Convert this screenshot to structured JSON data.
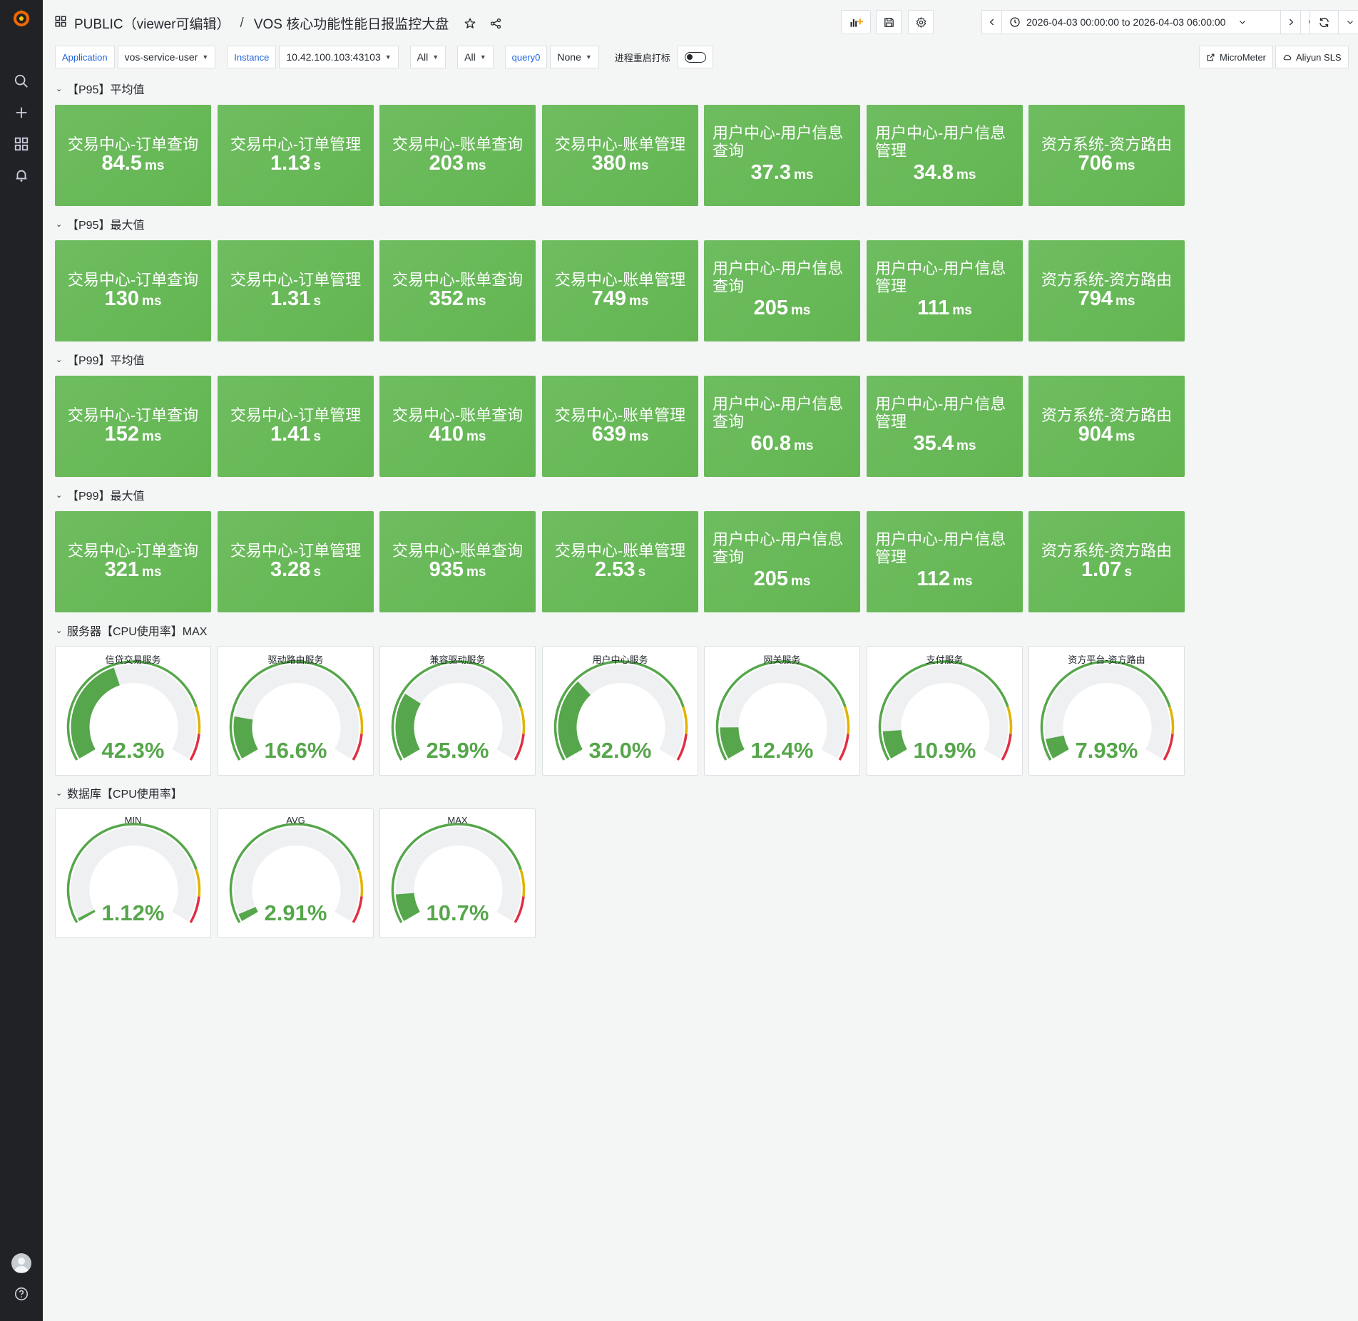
{
  "breadcrumb": {
    "folder": "PUBLIC（viewer可编辑）",
    "separator": "/",
    "dashboard": "VOS 核心功能性能日报监控大盘"
  },
  "timepicker": {
    "range": "2026-04-03 00:00:00 to 2026-04-03 06:00:00"
  },
  "variables": {
    "application_label": "Application",
    "application_value": "vos-service-user",
    "instance_label": "Instance",
    "instance_value": "10.42.100.103:43103",
    "all_1": "All",
    "all_2": "All",
    "query0_label": "query0",
    "query0_value": "None",
    "restart_label": "进程重启打标"
  },
  "links": {
    "micrometer": "MicroMeter",
    "aliyun": "Aliyun SLS"
  },
  "rows": {
    "p95_avg": "【P95】平均值",
    "p95_max": "【P95】最大值",
    "p99_avg": "【P99】平均值",
    "p99_max": "【P99】最大值",
    "cpu_server": "服务器【CPU使用率】MAX",
    "cpu_db": "数据库【CPU使用率】"
  },
  "stat_titles": [
    "交易中心-订单查询",
    "交易中心-订单管理",
    "交易中心-账单查询",
    "交易中心-账单管理",
    "用户中心-用户信息查询",
    "用户中心-用户信息管理",
    "资方系统-资方路由"
  ],
  "p95_avg": [
    {
      "value": "84.5",
      "unit": "ms"
    },
    {
      "value": "1.13",
      "unit": "s"
    },
    {
      "value": "203",
      "unit": "ms"
    },
    {
      "value": "380",
      "unit": "ms"
    },
    {
      "value": "37.3",
      "unit": "ms"
    },
    {
      "value": "34.8",
      "unit": "ms"
    },
    {
      "value": "706",
      "unit": "ms"
    }
  ],
  "p95_max": [
    {
      "value": "130",
      "unit": "ms"
    },
    {
      "value": "1.31",
      "unit": "s"
    },
    {
      "value": "352",
      "unit": "ms"
    },
    {
      "value": "749",
      "unit": "ms"
    },
    {
      "value": "205",
      "unit": "ms"
    },
    {
      "value": "111",
      "unit": "ms"
    },
    {
      "value": "794",
      "unit": "ms"
    }
  ],
  "p99_avg": [
    {
      "value": "152",
      "unit": "ms"
    },
    {
      "value": "1.41",
      "unit": "s"
    },
    {
      "value": "410",
      "unit": "ms"
    },
    {
      "value": "639",
      "unit": "ms"
    },
    {
      "value": "60.8",
      "unit": "ms"
    },
    {
      "value": "35.4",
      "unit": "ms"
    },
    {
      "value": "904",
      "unit": "ms"
    }
  ],
  "p99_max": [
    {
      "value": "321",
      "unit": "ms"
    },
    {
      "value": "3.28",
      "unit": "s"
    },
    {
      "value": "935",
      "unit": "ms"
    },
    {
      "value": "2.53",
      "unit": "s"
    },
    {
      "value": "205",
      "unit": "ms"
    },
    {
      "value": "112",
      "unit": "ms"
    },
    {
      "value": "1.07",
      "unit": "s"
    }
  ],
  "cpu_server": [
    {
      "title": "信贷交易服务",
      "text": "42.3%",
      "value": 42.3
    },
    {
      "title": "驱动路由服务",
      "text": "16.6%",
      "value": 16.6
    },
    {
      "title": "兼容驱动服务",
      "text": "25.9%",
      "value": 25.9
    },
    {
      "title": "用户中心服务",
      "text": "32.0%",
      "value": 32.0
    },
    {
      "title": "网关服务",
      "text": "12.4%",
      "value": 12.4
    },
    {
      "title": "支付服务",
      "text": "10.9%",
      "value": 10.9
    },
    {
      "title": "资方平台-资方路由",
      "text": "7.93%",
      "value": 7.93
    }
  ],
  "cpu_db": [
    {
      "title": "MIN",
      "text": "1.12%",
      "value": 1.12
    },
    {
      "title": "AVG",
      "text": "2.91%",
      "value": 2.91
    },
    {
      "title": "MAX",
      "text": "10.7%",
      "value": 10.7
    }
  ],
  "colors": {
    "stat_green": "#6ab75e",
    "gauge_green": "#56a64b",
    "threshold_yellow": "#e0b400",
    "threshold_red": "#e02f44",
    "link_blue": "#1f62e0"
  }
}
